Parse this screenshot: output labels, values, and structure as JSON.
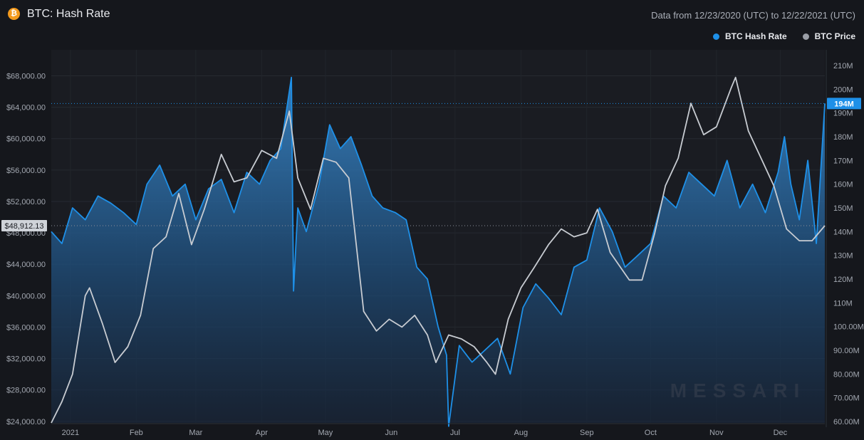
{
  "header": {
    "coin_icon": "bitcoin-icon",
    "coin_symbol": "₿",
    "title": "BTC: Hash Rate",
    "date_range": "Data from 12/23/2020 (UTC) to 12/22/2021 (UTC)"
  },
  "legend": [
    {
      "label": "BTC Hash Rate",
      "color": "#1e90e8"
    },
    {
      "label": "BTC Price",
      "color": "#9a9ea6"
    }
  ],
  "crosshair": {
    "price_label": "$48,912.13",
    "hash_label": "194M"
  },
  "watermark": "MESSARI",
  "chart_data": {
    "type": "line",
    "title": "BTC: Hash Rate",
    "x_labels": [
      "2021",
      "Feb",
      "Mar",
      "Apr",
      "May",
      "Jun",
      "Jul",
      "Aug",
      "Sep",
      "Oct",
      "Nov",
      "Dec"
    ],
    "x_label_dates": [
      "2021-01-01",
      "2021-02-01",
      "2021-03-01",
      "2021-04-01",
      "2021-05-01",
      "2021-06-01",
      "2021-07-01",
      "2021-08-01",
      "2021-09-01",
      "2021-10-01",
      "2021-11-01",
      "2021-12-01"
    ],
    "x_range": [
      "2020-12-23",
      "2021-12-22"
    ],
    "left_axis": {
      "series": "BTC Price",
      "ticks": [
        "$24,000.00",
        "$28,000.00",
        "$32,000.00",
        "$36,000.00",
        "$40,000.00",
        "$44,000.00",
        "$48,000.00",
        "$52,000.00",
        "$56,000.00",
        "$60,000.00",
        "$64,000.00",
        "$68,000.00"
      ],
      "tick_values": [
        24000,
        28000,
        32000,
        36000,
        40000,
        44000,
        48000,
        52000,
        56000,
        60000,
        64000,
        68000
      ],
      "range": [
        23800,
        70400
      ]
    },
    "right_axis": {
      "series": "BTC Hash Rate",
      "ticks": [
        "60.00M",
        "70.00M",
        "80.00M",
        "90.00M",
        "100.00M",
        "110M",
        "120M",
        "130M",
        "140M",
        "150M",
        "160M",
        "170M",
        "180M",
        "190M",
        "200M",
        "210M"
      ],
      "tick_values": [
        60,
        70,
        80,
        90,
        100,
        110,
        120,
        130,
        140,
        150,
        160,
        170,
        180,
        190,
        200,
        210
      ],
      "range": [
        59.4,
        213.6
      ],
      "unit": "M"
    },
    "series": [
      {
        "name": "BTC Hash Rate",
        "axis": "right",
        "color": "#1e90e8",
        "dates": [
          "2020-12-23",
          "2020-12-28",
          "2021-01-02",
          "2021-01-08",
          "2021-01-14",
          "2021-01-20",
          "2021-01-26",
          "2021-02-01",
          "2021-02-06",
          "2021-02-12",
          "2021-02-18",
          "2021-02-24",
          "2021-03-01",
          "2021-03-07",
          "2021-03-13",
          "2021-03-19",
          "2021-03-25",
          "2021-03-31",
          "2021-04-05",
          "2021-04-10",
          "2021-04-15",
          "2021-04-16",
          "2021-04-18",
          "2021-04-22",
          "2021-04-28",
          "2021-05-03",
          "2021-05-08",
          "2021-05-13",
          "2021-05-18",
          "2021-05-23",
          "2021-05-28",
          "2021-06-03",
          "2021-06-08",
          "2021-06-13",
          "2021-06-18",
          "2021-06-23",
          "2021-06-27",
          "2021-06-28",
          "2021-07-03",
          "2021-07-09",
          "2021-07-15",
          "2021-07-21",
          "2021-07-27",
          "2021-08-02",
          "2021-08-08",
          "2021-08-14",
          "2021-08-20",
          "2021-08-26",
          "2021-09-01",
          "2021-09-07",
          "2021-09-13",
          "2021-09-19",
          "2021-09-25",
          "2021-10-01",
          "2021-10-07",
          "2021-10-13",
          "2021-10-19",
          "2021-10-25",
          "2021-10-31",
          "2021-11-06",
          "2021-11-12",
          "2021-11-18",
          "2021-11-24",
          "2021-11-30",
          "2021-12-03",
          "2021-12-06",
          "2021-12-10",
          "2021-12-14",
          "2021-12-18",
          "2021-12-22"
        ],
        "values": [
          140,
          135,
          150,
          145,
          155,
          152,
          148,
          143,
          160,
          168,
          155,
          160,
          145,
          158,
          162,
          148,
          165,
          160,
          170,
          175,
          205,
          115,
          150,
          140,
          160,
          185,
          175,
          180,
          168,
          155,
          150,
          148,
          145,
          125,
          120,
          100,
          88,
          58,
          92,
          85,
          90,
          95,
          80,
          108,
          118,
          112,
          105,
          125,
          128,
          150,
          140,
          125,
          130,
          135,
          155,
          150,
          165,
          160,
          155,
          170,
          150,
          160,
          148,
          165,
          180,
          160,
          145,
          170,
          135,
          194
        ]
      },
      {
        "name": "BTC Price",
        "axis": "left",
        "color": "#c8ccd2",
        "dates": [
          "2020-12-23",
          "2020-12-28",
          "2021-01-02",
          "2021-01-08",
          "2021-01-10",
          "2021-01-16",
          "2021-01-22",
          "2021-01-28",
          "2021-02-03",
          "2021-02-09",
          "2021-02-15",
          "2021-02-21",
          "2021-02-27",
          "2021-03-05",
          "2021-03-13",
          "2021-03-19",
          "2021-03-25",
          "2021-04-01",
          "2021-04-08",
          "2021-04-14",
          "2021-04-18",
          "2021-04-24",
          "2021-04-30",
          "2021-05-06",
          "2021-05-12",
          "2021-05-19",
          "2021-05-25",
          "2021-05-31",
          "2021-06-06",
          "2021-06-12",
          "2021-06-18",
          "2021-06-22",
          "2021-06-28",
          "2021-07-04",
          "2021-07-10",
          "2021-07-16",
          "2021-07-20",
          "2021-07-26",
          "2021-08-01",
          "2021-08-07",
          "2021-08-14",
          "2021-08-20",
          "2021-08-26",
          "2021-09-01",
          "2021-09-06",
          "2021-09-12",
          "2021-09-21",
          "2021-09-27",
          "2021-10-03",
          "2021-10-08",
          "2021-10-14",
          "2021-10-20",
          "2021-10-26",
          "2021-11-01",
          "2021-11-08",
          "2021-11-10",
          "2021-11-16",
          "2021-11-22",
          "2021-11-28",
          "2021-12-04",
          "2021-12-10",
          "2021-12-16",
          "2021-12-22"
        ],
        "values": [
          23800,
          26500,
          30000,
          40000,
          41000,
          36500,
          31500,
          33500,
          37500,
          46000,
          47500,
          53000,
          46500,
          51000,
          58000,
          54500,
          55000,
          58500,
          57500,
          63500,
          55000,
          51000,
          57500,
          57000,
          55000,
          38000,
          35500,
          37000,
          36000,
          37500,
          35000,
          31500,
          35000,
          34500,
          33500,
          31500,
          30000,
          37000,
          41000,
          43500,
          46500,
          48500,
          47500,
          48000,
          51000,
          45500,
          42000,
          42000,
          48000,
          54000,
          57500,
          64500,
          60500,
          61500,
          66500,
          67800,
          61000,
          57500,
          54000,
          48500,
          47000,
          47000,
          48912
        ]
      }
    ]
  }
}
